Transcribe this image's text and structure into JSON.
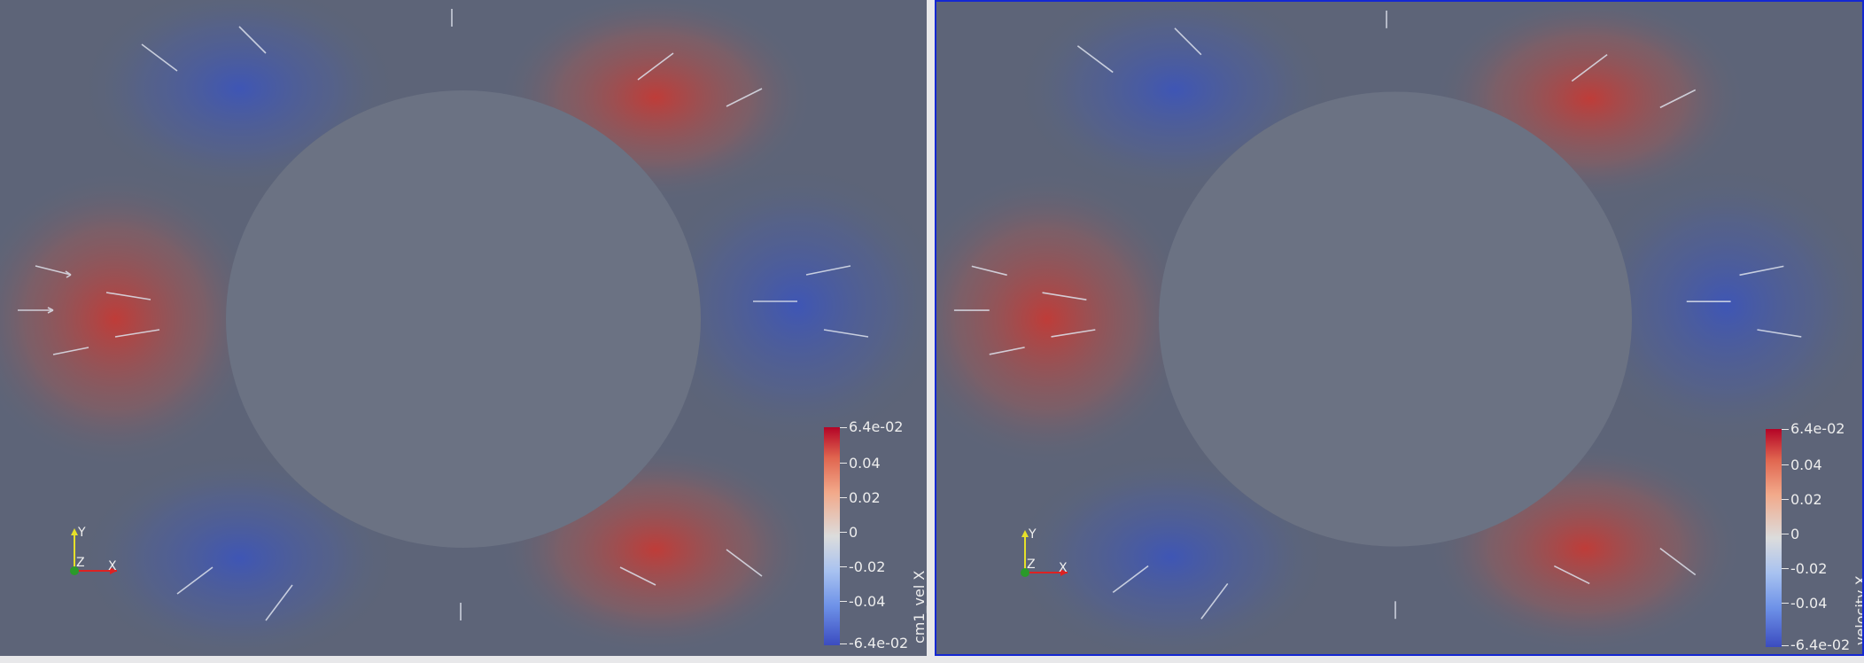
{
  "views": [
    {
      "id": "left",
      "active": false,
      "scalar_bar": {
        "title": "cm1_vel X",
        "labels": [
          "6.4e-02",
          "0.04",
          "0.02",
          "0",
          "-0.02",
          "-0.04",
          "-6.4e-02"
        ]
      },
      "axes": {
        "x": "X",
        "y": "Y",
        "z": "Z"
      }
    },
    {
      "id": "right",
      "active": true,
      "scalar_bar": {
        "title": "velocity X",
        "labels": [
          "6.4e-02",
          "0.04",
          "0.02",
          "0",
          "-0.02",
          "-0.04",
          "-6.4e-02"
        ]
      },
      "axes": {
        "x": "X",
        "y": "Y",
        "z": "Z"
      }
    }
  ],
  "colors": {
    "background": "#5a6678",
    "obstacle": "#6b7280",
    "positive": "#c04a3c",
    "negative": "#4a68c8",
    "active_border": "#1428d2"
  }
}
